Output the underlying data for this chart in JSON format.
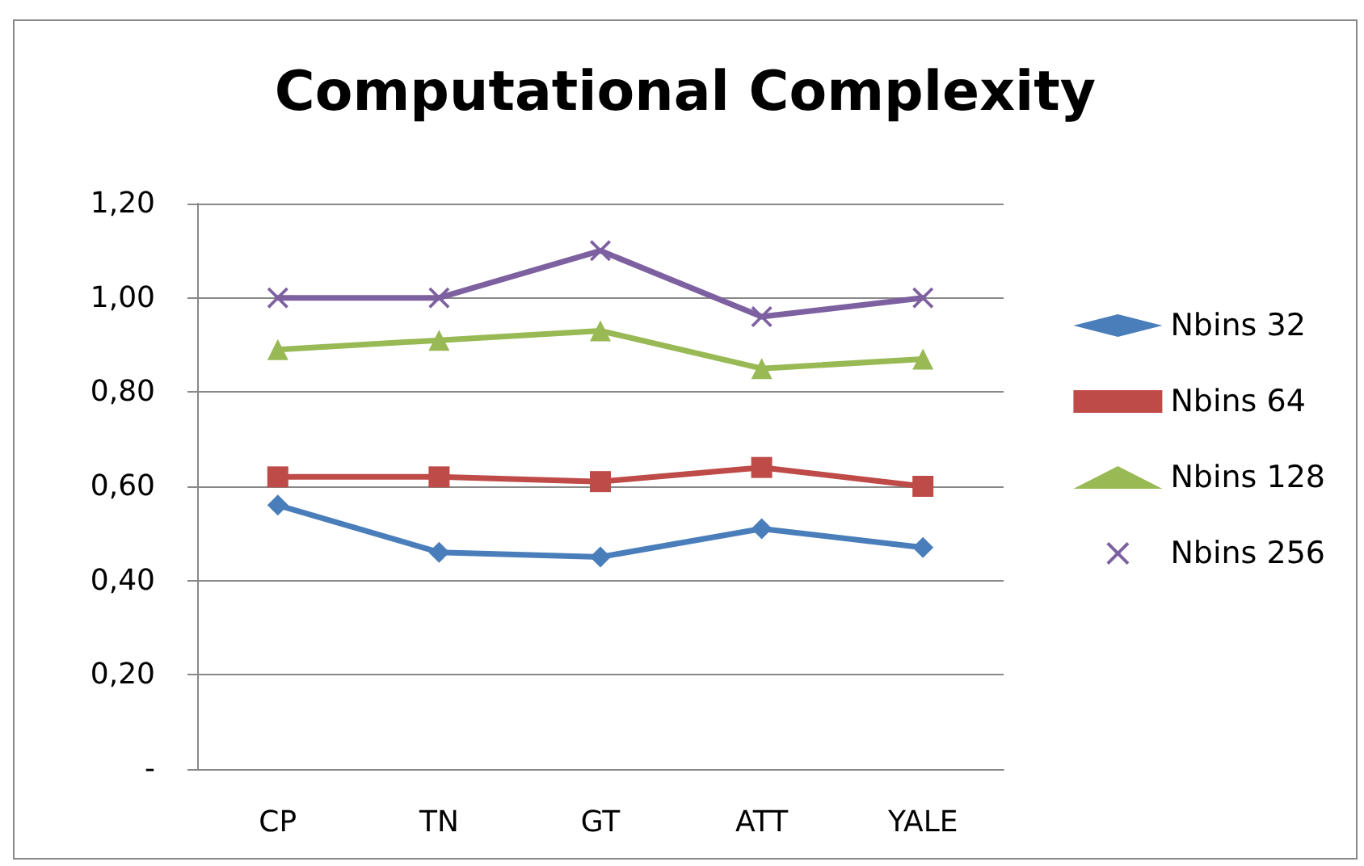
{
  "chart_data": {
    "type": "line",
    "title": "Computational Complexity",
    "categories": [
      "CP",
      "TN",
      "GT",
      "ATT",
      "YALE"
    ],
    "series": [
      {
        "name": "Nbins 32",
        "color": "#4a7ebb",
        "marker": "diamond",
        "values": [
          0.56,
          0.46,
          0.45,
          0.51,
          0.47
        ]
      },
      {
        "name": "Nbins 64",
        "color": "#be4b48",
        "marker": "square",
        "values": [
          0.62,
          0.62,
          0.61,
          0.64,
          0.6
        ]
      },
      {
        "name": "Nbins 128",
        "color": "#98b954",
        "marker": "triangle",
        "values": [
          0.89,
          0.91,
          0.93,
          0.85,
          0.87
        ]
      },
      {
        "name": "Nbins 256",
        "color": "#7d60a0",
        "marker": "cross",
        "values": [
          1.0,
          1.0,
          1.1,
          0.96,
          1.0
        ]
      }
    ],
    "ylim": [
      0,
      1.2
    ],
    "yticks": [
      {
        "value": 0,
        "label": "-"
      },
      {
        "value": 0.2,
        "label": "0,20"
      },
      {
        "value": 0.4,
        "label": "0,40"
      },
      {
        "value": 0.6,
        "label": "0,60"
      },
      {
        "value": 0.8,
        "label": "0,80"
      },
      {
        "value": 1.0,
        "label": "1,00"
      },
      {
        "value": 1.2,
        "label": "1,20"
      }
    ],
    "grid": "y",
    "legend": "right",
    "line_style": "solid"
  }
}
